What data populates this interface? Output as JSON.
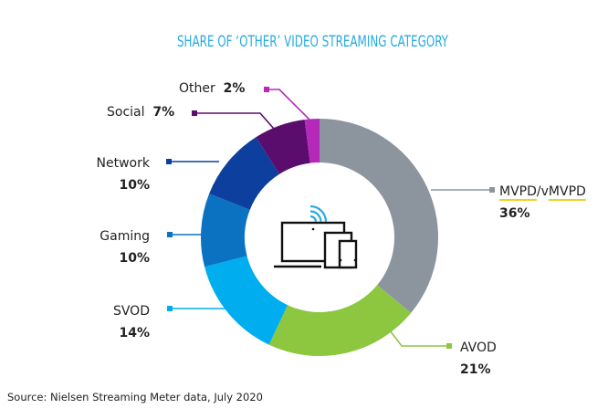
{
  "chart_data": {
    "type": "pie",
    "variant": "donut",
    "title": "SHARE OF ‘OTHER’ VIDEO STREAMING CATEGORY",
    "start_angle_deg": 0,
    "direction": "clockwise",
    "slices": [
      {
        "name": "MVPD/vMVPD",
        "value": 36,
        "label": "36%",
        "color": "#8c959d"
      },
      {
        "name": "AVOD",
        "value": 21,
        "label": "21%",
        "color": "#8dc63f"
      },
      {
        "name": "SVOD",
        "value": 14,
        "label": "14%",
        "color": "#00aeef"
      },
      {
        "name": "Gaming",
        "value": 10,
        "label": "10%",
        "color": "#0b72c2"
      },
      {
        "name": "Network",
        "value": 10,
        "label": "10%",
        "color": "#0d3f9e"
      },
      {
        "name": "Social",
        "value": 7,
        "label": "7%",
        "color": "#5b0d6e"
      },
      {
        "name": "Other",
        "value": 2,
        "label": "2%",
        "color": "#b628b9"
      }
    ],
    "center_icon": "multi-device-streaming-icon",
    "source": "Source: Nielsen Streaming Meter data, July 2020"
  }
}
